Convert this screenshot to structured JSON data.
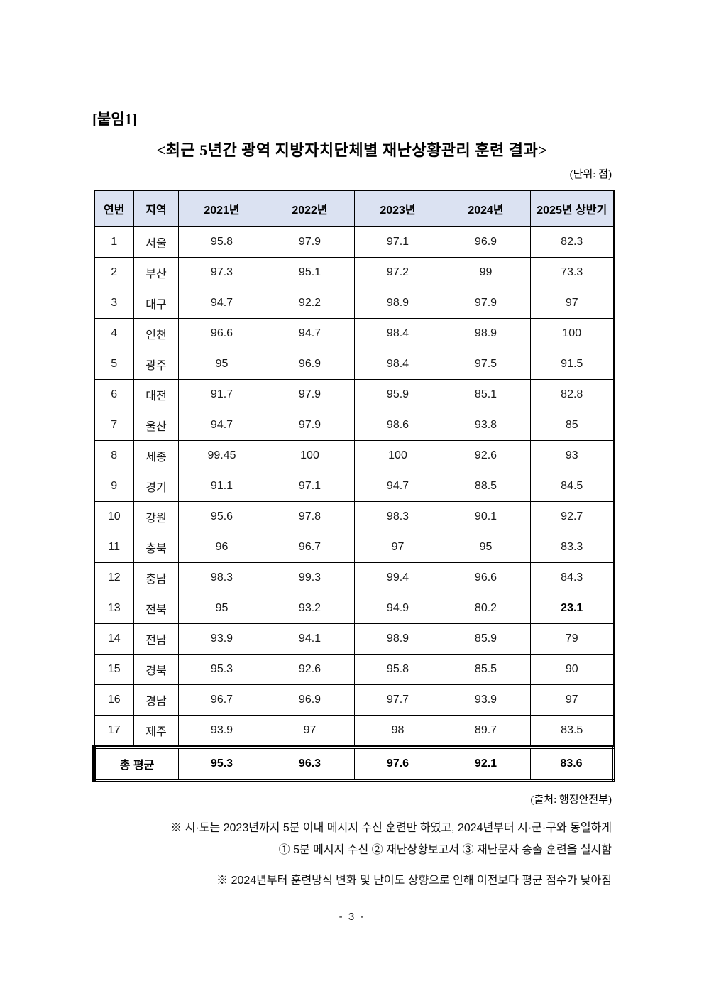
{
  "page": {
    "attachment_label": "[붙임1]",
    "title": "<최근 5년간 광역 지방자치단체별 재난상황관리 훈련 결과>",
    "unit_label": "(단위: 점)",
    "source_label": "(출처: 행정안전부)",
    "note1_line1": "※ 시·도는 2023년까지 5분 이내 메시지 수신 훈련만 하였고, 2024년부터 시·군·구와 동일하게",
    "note1_line2": "① 5분 메시지 수신 ② 재난상황보고서 ③ 재난문자 송출 훈련을 실시함",
    "note2": "※ 2024년부터 훈련방식 변화 및 난이도 상향으로 인해 이전보다 평균 점수가 낮아짐",
    "page_number": "- 3 -"
  },
  "colors": {
    "header_bg": "#dbe2f2",
    "border": "#000000"
  },
  "table": {
    "headers": [
      "연번",
      "지역",
      "2021년",
      "2022년",
      "2023년",
      "2024년",
      "2025년 상반기"
    ],
    "rows": [
      {
        "no": "1",
        "region": "서울",
        "values": [
          "95.8",
          "97.9",
          "97.1",
          "96.9",
          "82.3"
        ]
      },
      {
        "no": "2",
        "region": "부산",
        "values": [
          "97.3",
          "95.1",
          "97.2",
          "99",
          "73.3"
        ]
      },
      {
        "no": "3",
        "region": "대구",
        "values": [
          "94.7",
          "92.2",
          "98.9",
          "97.9",
          "97"
        ]
      },
      {
        "no": "4",
        "region": "인천",
        "values": [
          "96.6",
          "94.7",
          "98.4",
          "98.9",
          "100"
        ]
      },
      {
        "no": "5",
        "region": "광주",
        "values": [
          "95",
          "96.9",
          "98.4",
          "97.5",
          "91.5"
        ]
      },
      {
        "no": "6",
        "region": "대전",
        "values": [
          "91.7",
          "97.9",
          "95.9",
          "85.1",
          "82.8"
        ]
      },
      {
        "no": "7",
        "region": "울산",
        "values": [
          "94.7",
          "97.9",
          "98.6",
          "93.8",
          "85"
        ]
      },
      {
        "no": "8",
        "region": "세종",
        "values": [
          "99.45",
          "100",
          "100",
          "92.6",
          "93"
        ]
      },
      {
        "no": "9",
        "region": "경기",
        "values": [
          "91.1",
          "97.1",
          "94.7",
          "88.5",
          "84.5"
        ]
      },
      {
        "no": "10",
        "region": "강원",
        "values": [
          "95.6",
          "97.8",
          "98.3",
          "90.1",
          "92.7"
        ]
      },
      {
        "no": "11",
        "region": "충북",
        "values": [
          "96",
          "96.7",
          "97",
          "95",
          "83.3"
        ]
      },
      {
        "no": "12",
        "region": "충남",
        "values": [
          "98.3",
          "99.3",
          "99.4",
          "96.6",
          "84.3"
        ]
      },
      {
        "no": "13",
        "region": "전북",
        "values": [
          "95",
          "93.2",
          "94.9",
          "80.2",
          "23.1"
        ],
        "bold_indices": [
          4
        ]
      },
      {
        "no": "14",
        "region": "전남",
        "values": [
          "93.9",
          "94.1",
          "98.9",
          "85.9",
          "79"
        ]
      },
      {
        "no": "15",
        "region": "경북",
        "values": [
          "95.3",
          "92.6",
          "95.8",
          "85.5",
          "90"
        ]
      },
      {
        "no": "16",
        "region": "경남",
        "values": [
          "96.7",
          "96.9",
          "97.7",
          "93.9",
          "97"
        ]
      },
      {
        "no": "17",
        "region": "제주",
        "values": [
          "93.9",
          "97",
          "98",
          "89.7",
          "83.5"
        ]
      }
    ],
    "total": {
      "label": "총 평균",
      "values": [
        "95.3",
        "96.3",
        "97.6",
        "92.1",
        "83.6"
      ]
    }
  }
}
